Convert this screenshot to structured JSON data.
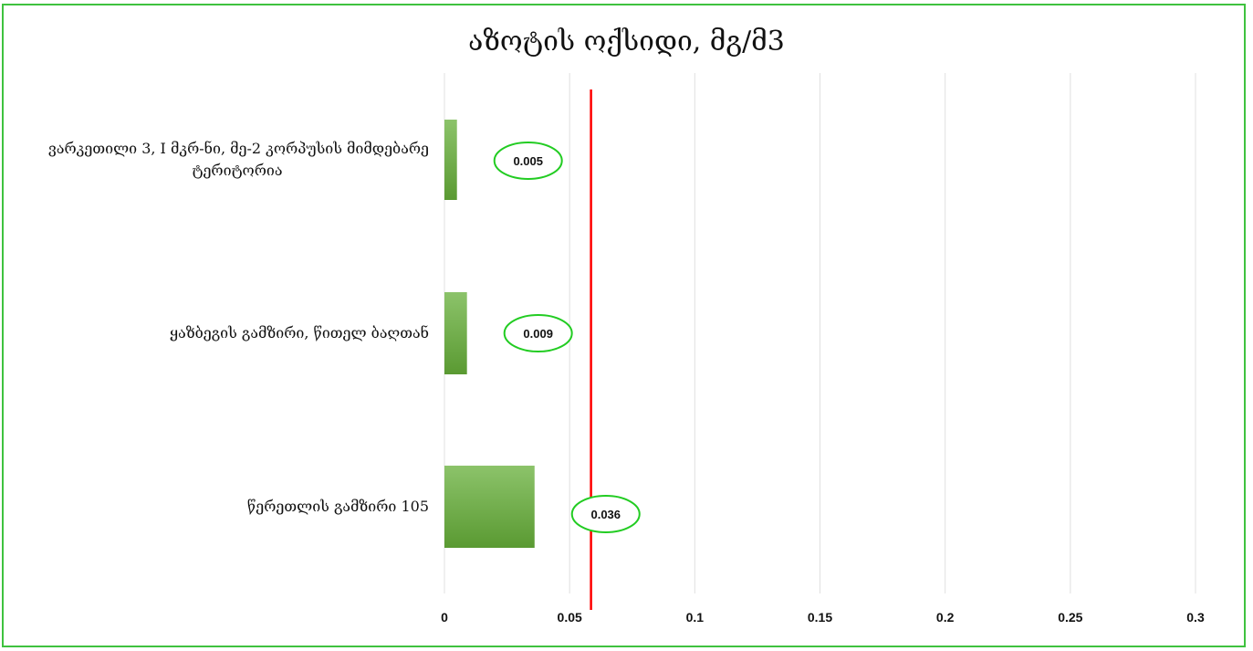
{
  "chart_data": {
    "type": "bar",
    "orientation": "horizontal",
    "title": "აზოტის ოქსიდი, მგ/მ3",
    "categories": [
      [
        "ვარკეთილი 3, I მკრ-ნი, მე-2 კორპუსის მიმდებარე",
        "ტერიტორია"
      ],
      [
        "ყაზბეგის გამზირი, წითელ ბაღთან"
      ],
      [
        "წერეთლის გამზირი 105"
      ]
    ],
    "values": [
      0.005,
      0.009,
      0.036
    ],
    "data_labels": [
      "0.005",
      "0.009",
      "0.036"
    ],
    "xlim": [
      0,
      0.3
    ],
    "xticks": [
      0,
      0.05,
      0.1,
      0.15,
      0.2,
      0.25,
      0.3
    ],
    "xtick_labels": [
      "0",
      "0.05",
      "0.1",
      "0.15",
      "0.2",
      "0.25",
      "0.3"
    ],
    "reference_line": 0.06,
    "grid": "vertical",
    "colors": {
      "bar": "#70ad47",
      "bar_dark": "#5a9a32",
      "reference_line": "#ff0000",
      "label_ellipse": "#22cc22",
      "frame_border": "#3fc23f",
      "gridline": "#e0e0e0"
    }
  }
}
